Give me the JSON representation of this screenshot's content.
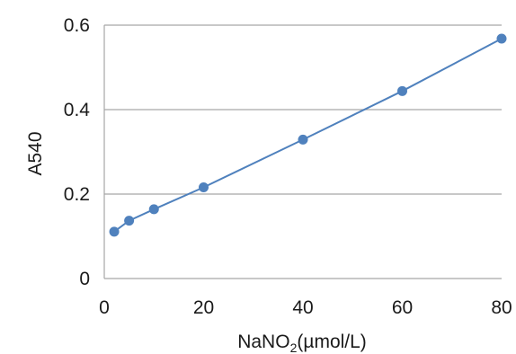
{
  "chart_data": {
    "type": "scatter",
    "title": "",
    "xlabel_parts": {
      "main": "NaNO",
      "subscript": "2",
      "suffix": "(µmol/L)"
    },
    "ylabel": "A540",
    "xlim": [
      0,
      80
    ],
    "ylim": [
      0,
      0.6
    ],
    "xticks": [
      0,
      20,
      40,
      60,
      80
    ],
    "yticks": [
      0,
      0.2,
      0.4,
      0.6
    ],
    "xtick_labels": [
      "0",
      "20",
      "40",
      "60",
      "80"
    ],
    "ytick_labels": [
      "0",
      "0.2",
      "0.4",
      "0.6"
    ],
    "grid": {
      "horizontal": true,
      "vertical": false
    },
    "legend": "none",
    "series": [
      {
        "color": "#4f81bd",
        "marker": "circle",
        "connected": true,
        "x": [
          2,
          5,
          10,
          20,
          40,
          60,
          80
        ],
        "y": [
          0.111,
          0.137,
          0.164,
          0.216,
          0.329,
          0.444,
          0.568
        ]
      }
    ],
    "colors": {
      "grid": "#a6a6a6",
      "axis": "#a6a6a6",
      "series": "#4f81bd"
    }
  }
}
